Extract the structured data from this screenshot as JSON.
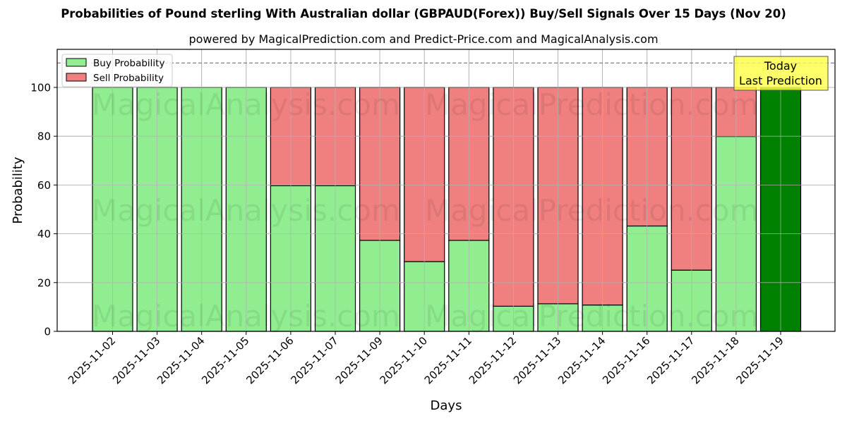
{
  "header": {
    "title": "Probabilities of Pound sterling With Australian dollar (GBPAUD(Forex)) Buy/Sell Signals Over 15 Days (Nov 20)",
    "subtitle": "powered by MagicalPrediction.com and Predict-Price.com and MagicalAnalysis.com"
  },
  "colors": {
    "buy": "#90ee90",
    "sell": "#f08080",
    "today": "#008000",
    "annotation_bg": "#ffff44",
    "grid": "#b0b0b0"
  },
  "legend": {
    "items": [
      {
        "label": "Buy Probability",
        "color": "#90ee90"
      },
      {
        "label": "Sell Probability",
        "color": "#f08080"
      }
    ]
  },
  "annotation": {
    "line1": "Today",
    "line2": "Last Prediction"
  },
  "watermarks": [
    "MagicalAnalysis.com",
    "MagicalPrediction.com"
  ],
  "chart_data": {
    "type": "bar",
    "stacked": true,
    "title": "Probabilities of Pound sterling With Australian dollar (GBPAUD(Forex)) Buy/Sell Signals Over 15 Days (Nov 20)",
    "subtitle": "powered by MagicalPrediction.com and Predict-Price.com and MagicalAnalysis.com",
    "xlabel": "Days",
    "ylabel": "Probability",
    "ylim": [
      0,
      115
    ],
    "yticks": [
      0,
      20,
      40,
      60,
      80,
      100
    ],
    "grid": true,
    "legend_position": "upper left",
    "reference_line": {
      "y": 110,
      "style": "dashed",
      "color": "#808080"
    },
    "categories": [
      "2025-11-02",
      "2025-11-03",
      "2025-11-04",
      "2025-11-05",
      "2025-11-06",
      "2025-11-07",
      "2025-11-09",
      "2025-11-10",
      "2025-11-11",
      "2025-11-12",
      "2025-11-13",
      "2025-11-14",
      "2025-11-16",
      "2025-11-17",
      "2025-11-18",
      "2025-11-19"
    ],
    "series": [
      {
        "name": "Buy Probability",
        "values": [
          100,
          100,
          100,
          100,
          59.7,
          59.7,
          37.3,
          28.6,
          37.3,
          10.3,
          11.3,
          10.8,
          43.2,
          25.1,
          79.9,
          100
        ]
      },
      {
        "name": "Sell Probability",
        "values": [
          0,
          0,
          0,
          0,
          40.3,
          40.3,
          62.7,
          71.4,
          62.7,
          89.7,
          88.7,
          89.2,
          56.8,
          74.9,
          20.1,
          0
        ]
      }
    ],
    "annotations": [
      {
        "text": "Today\nLast Prediction",
        "x": "2025-11-19"
      }
    ],
    "highlight_last_bar_color": "#008000"
  }
}
